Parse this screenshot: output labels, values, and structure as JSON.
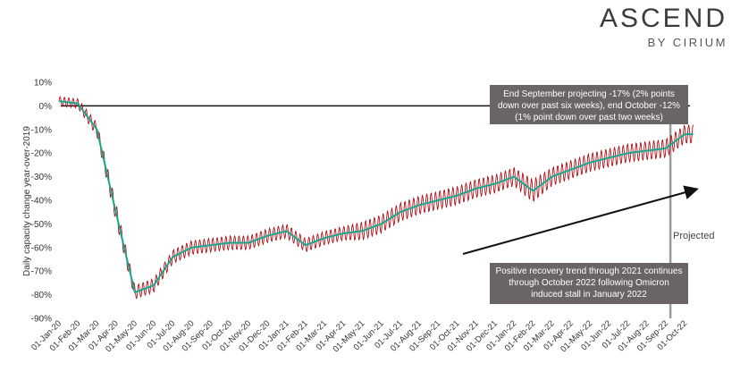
{
  "brand": {
    "name": "ASCEND",
    "sub": "BY CIRIUM"
  },
  "colors": {
    "raw_series": "#b5121b",
    "trend_series": "#1aa58a",
    "callout_bg": "#6b6466",
    "projection_line": "#9a9a9a"
  },
  "annotations": {
    "top_callout": "End September projecting -17% (2% points down over past six weeks), end October -12% (1% point down over past two weeks)",
    "bottom_callout": "Positive recovery trend through 2021 continues through October 2022 following Omicron induced stall in January 2022",
    "projected_label": "Projected"
  },
  "chart_data": {
    "type": "line",
    "title": "",
    "xlabel": "",
    "ylabel": "Daily capacity change year-over-2019",
    "ylim": [
      -90,
      10
    ],
    "y_ticks": [
      "10%",
      "0%",
      "-10%",
      "-20%",
      "-30%",
      "-40%",
      "-50%",
      "-60%",
      "-70%",
      "-80%",
      "-90%"
    ],
    "x_ticks": [
      "01-Jan-20",
      "01-Feb-20",
      "01-Mar-20",
      "01-Apr-20",
      "01-May-20",
      "01-Jun-20",
      "01-Jul-20",
      "01-Aug-20",
      "01-Sep-20",
      "01-Oct-20",
      "01-Nov-20",
      "01-Dec-20",
      "01-Jan-21",
      "01-Feb-21",
      "01-Mar-21",
      "01-Apr-21",
      "01-May-21",
      "01-Jun-21",
      "01-Jul-21",
      "01-Aug-21",
      "01-Sep-21",
      "01-Oct-21",
      "01-Nov-21",
      "01-Dec-21",
      "01-Jan-22",
      "01-Feb-22",
      "01-Mar-22",
      "01-Apr-22",
      "01-May-22",
      "01-Jun-22",
      "01-Jul-22",
      "01-Aug-22",
      "01-Sep-22",
      "01-Oct-22"
    ],
    "projection_start": "01-Sep-22",
    "series": [
      {
        "values_monthly_trend": [
          2,
          1,
          -10,
          -45,
          -79,
          -76,
          -64,
          -60,
          -59,
          -58,
          -58,
          -55,
          -53,
          -59,
          -56,
          -54,
          -53,
          -50,
          -45,
          -42,
          -40,
          -38,
          -35,
          -33,
          -30,
          -36,
          -30,
          -27,
          -24,
          -22,
          -20,
          -19,
          -18,
          -12
        ],
        "weekly_amplitude": [
          2,
          2,
          3,
          4,
          3,
          3,
          3,
          3,
          3,
          3,
          3,
          3,
          3,
          3,
          3,
          3,
          4,
          4,
          4,
          4,
          4,
          4,
          4,
          4,
          4,
          5,
          4,
          4,
          4,
          4,
          4,
          4,
          4,
          4
        ]
      }
    ]
  }
}
